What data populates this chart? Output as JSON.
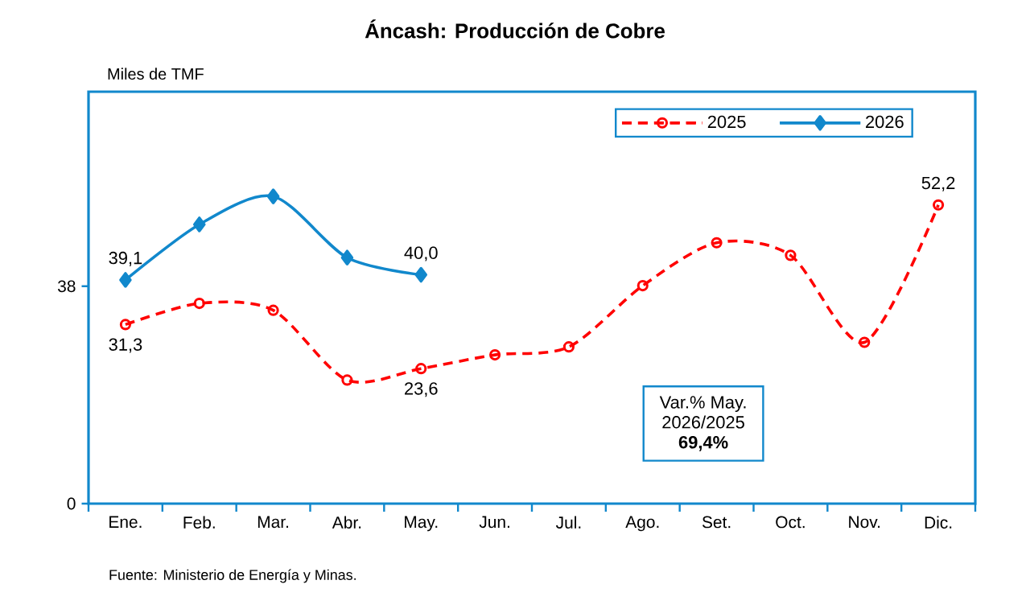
{
  "chart_data": {
    "type": "line",
    "title": "Áncash: Producción de Cobre",
    "ylabel": "Miles de TMF",
    "categories": [
      "Ene.",
      "Feb.",
      "Mar.",
      "Abr.",
      "May.",
      "Jun.",
      "Jul.",
      "Ago.",
      "Set.",
      "Oct.",
      "Nov.",
      "Dic."
    ],
    "series": [
      {
        "name": "2025",
        "color": "#ff0000",
        "marker": "circle",
        "line_style": "dashed",
        "values": [
          31.3,
          35.0,
          33.8,
          21.6,
          23.6,
          26.0,
          27.4,
          38.1,
          45.6,
          43.4,
          28.2,
          52.2
        ],
        "value_labels": [
          "31,3",
          null,
          null,
          null,
          "23,6",
          null,
          null,
          null,
          null,
          null,
          null,
          "52,2"
        ]
      },
      {
        "name": "2026",
        "color": "#1188cc",
        "marker": "diamond",
        "line_style": "solid",
        "values": [
          39.1,
          48.8,
          53.7,
          43.0,
          40.0,
          null,
          null,
          null,
          null,
          null,
          null,
          null
        ],
        "value_labels": [
          "39,1",
          null,
          null,
          null,
          "40,0",
          null,
          null,
          null,
          null,
          null,
          null,
          null
        ]
      }
    ],
    "ylim": [
      0,
      72
    ],
    "yticks": [
      0,
      38
    ],
    "grid": false,
    "legend": "top right",
    "annotations": [
      "Var.% May.",
      "2026/2025",
      "69,4%",
      "Fuente: Ministerio de Energía y Minas."
    ]
  }
}
